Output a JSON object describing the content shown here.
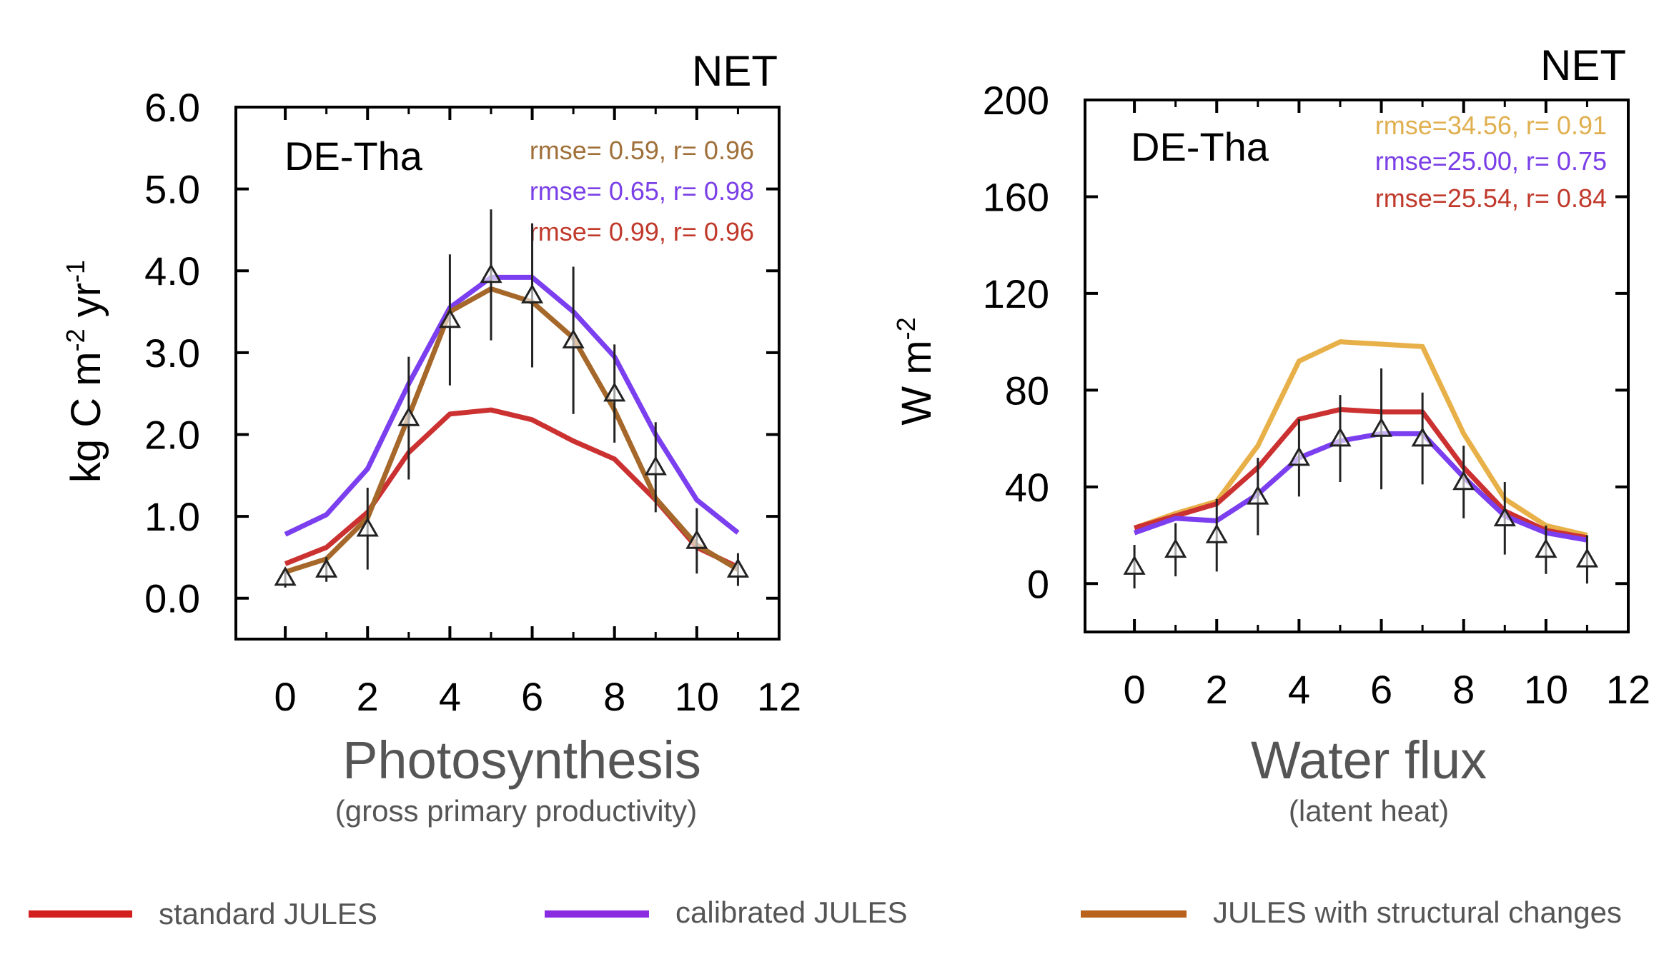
{
  "chart_data": [
    {
      "type": "line",
      "panel_title": "Photosynthesis",
      "panel_subtitle": "(gross primary productivity)",
      "corner_label": "NET",
      "site_label": "DE-Tha",
      "ylabel_main": "kg C m",
      "ylabel_exp1": "-2",
      "ylabel_mid": " yr",
      "ylabel_exp2": "-1",
      "xlim": [
        -1.2,
        12
      ],
      "ylim": [
        -0.5,
        6.0
      ],
      "xticks": [
        0,
        2,
        4,
        6,
        8,
        10,
        12
      ],
      "yticks": [
        0.0,
        1.0,
        2.0,
        3.0,
        4.0,
        5.0,
        6.0
      ],
      "ytick_labels": [
        "0.0",
        "1.0",
        "2.0",
        "3.0",
        "4.0",
        "5.0",
        "6.0"
      ],
      "stats": [
        {
          "text": "rmse= 0.59, r= 0.96",
          "color": "#a0703a"
        },
        {
          "text": "rmse= 0.65, r= 0.98",
          "color": "#7a3fe6"
        },
        {
          "text": "rmse= 0.99, r= 0.96",
          "color": "#c0392b"
        }
      ],
      "x": [
        0,
        1,
        2,
        3,
        4,
        5,
        6,
        7,
        8,
        9,
        10,
        11
      ],
      "series": [
        {
          "key": "standard",
          "color": "#cc3131",
          "values": [
            0.42,
            0.62,
            1.05,
            1.78,
            2.25,
            2.3,
            2.18,
            1.92,
            1.7,
            1.2,
            0.62,
            0.38
          ]
        },
        {
          "key": "calibrated",
          "color": "#7b3ff0",
          "values": [
            0.78,
            1.02,
            1.58,
            2.62,
            3.55,
            3.92,
            3.92,
            3.5,
            2.95,
            2.0,
            1.2,
            0.8
          ]
        },
        {
          "key": "structural",
          "color": "#a5682a",
          "values": [
            0.32,
            0.48,
            0.98,
            2.22,
            3.5,
            3.78,
            3.62,
            3.18,
            2.3,
            1.22,
            0.65,
            0.35
          ]
        }
      ],
      "observations": {
        "values": [
          0.25,
          0.35,
          0.85,
          2.2,
          3.4,
          3.95,
          3.7,
          3.15,
          2.5,
          1.6,
          0.7,
          0.35
        ],
        "error": [
          0.12,
          0.15,
          0.5,
          0.75,
          0.8,
          0.8,
          0.88,
          0.9,
          0.6,
          0.55,
          0.4,
          0.2
        ]
      }
    },
    {
      "type": "line",
      "panel_title": "Water flux",
      "panel_subtitle": "(latent heat)",
      "corner_label": "NET",
      "site_label": "DE-Tha",
      "ylabel_main": "W m",
      "ylabel_exp1": "-2",
      "ylabel_mid": "",
      "ylabel_exp2": "",
      "xlim": [
        -1.2,
        12
      ],
      "ylim": [
        -20,
        200
      ],
      "xticks": [
        0,
        2,
        4,
        6,
        8,
        10,
        12
      ],
      "yticks": [
        0,
        40,
        80,
        120,
        160,
        200
      ],
      "ytick_labels": [
        "0",
        "40",
        "80",
        "120",
        "160",
        "200"
      ],
      "stats": [
        {
          "text": "rmse=34.56, r= 0.91",
          "color": "#e0b050"
        },
        {
          "text": "rmse=25.00, r= 0.75",
          "color": "#7a3fe6"
        },
        {
          "text": "rmse=25.54, r= 0.84",
          "color": "#c0392b"
        }
      ],
      "x": [
        0,
        1,
        2,
        3,
        4,
        5,
        6,
        7,
        8,
        9,
        10,
        11
      ],
      "series": [
        {
          "key": "structural",
          "color": "#e8b048",
          "values": [
            23,
            29,
            34,
            57,
            92,
            100,
            99,
            98,
            62,
            35,
            24,
            20
          ]
        },
        {
          "key": "standard",
          "color": "#cc3131",
          "values": [
            23,
            28,
            33,
            48,
            68,
            72,
            71,
            71,
            48,
            30,
            22,
            19
          ]
        },
        {
          "key": "calibrated",
          "color": "#7b3ff0",
          "values": [
            21,
            27,
            26,
            37,
            52,
            59,
            62,
            62,
            44,
            28,
            21,
            18
          ]
        }
      ],
      "observations": {
        "values": [
          7,
          14,
          20,
          36,
          52,
          60,
          64,
          60,
          42,
          27,
          14,
          10
        ],
        "error": [
          9,
          11,
          15,
          16,
          16,
          18,
          25,
          19,
          15,
          15,
          10,
          10
        ]
      }
    }
  ],
  "legend": [
    {
      "label": "standard JULES",
      "color": "#d41f1f"
    },
    {
      "label": "calibrated JULES",
      "color": "#8a2be2"
    },
    {
      "label": "JULES with structural changes",
      "color": "#b8621e"
    }
  ]
}
